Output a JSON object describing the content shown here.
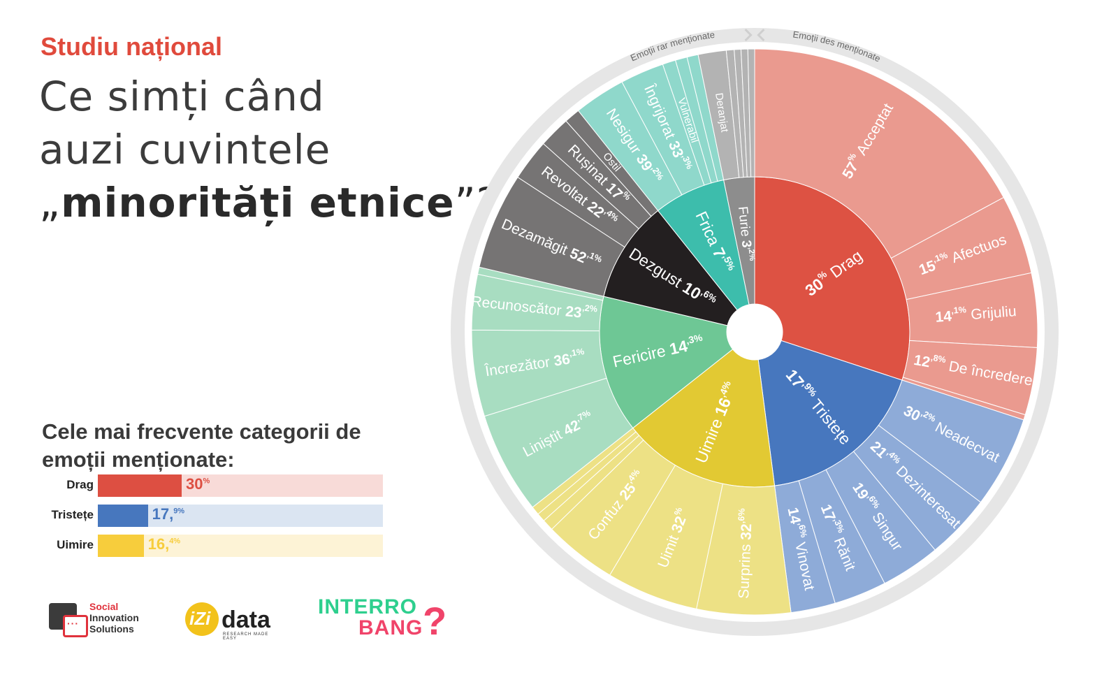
{
  "heading": {
    "kicker": "Studiu național",
    "line1": "Ce simți când",
    "line2": "auzi cuvintele",
    "line3_prefix": "„",
    "line3_bold": "minorități etnice",
    "line3_suffix": "”?"
  },
  "top_categories": {
    "title": "Cele mai frecvente categorii de emoții menționate:",
    "items": [
      {
        "label": "Drag",
        "value": 30,
        "display": "30",
        "sup": "%",
        "color": "#dd4f42",
        "bg": "#f8dbd8"
      },
      {
        "label": "Tristețe",
        "value": 17.9,
        "display": "17,",
        "sup": "9%",
        "color": "#4777be",
        "bg": "#dbe5f2"
      },
      {
        "label": "Uimire",
        "value": 16.4,
        "display": "16,",
        "sup": "4%",
        "color": "#f7cd3c",
        "bg": "#fdf3d6"
      }
    ]
  },
  "logos": {
    "sis": {
      "line1": "Social",
      "line2": "Innovation",
      "line3": "Solutions"
    },
    "izi": {
      "mark": "iZi",
      "word": "data",
      "tagline": "RESEARCH MADE EASY"
    },
    "interrobang": {
      "line1": "INTERRO",
      "line2": "BANG",
      "mark": "?"
    }
  },
  "chart_data": {
    "type": "sunburst",
    "arc_left_label": "Emoții rar menționate",
    "arc_right_label": "Emoții des menționate",
    "categories": [
      {
        "name": "Drag",
        "value": 30.0,
        "label_num": "30",
        "label_sup": "%",
        "color": "#dd5243",
        "outer_color": "#ea9a8f",
        "children": [
          {
            "name": "Acceptat",
            "num": "57",
            "sup": "%",
            "value": 57
          },
          {
            "name": "Afectuos",
            "num": "15",
            "sup": ",1%",
            "value": 15.1
          },
          {
            "name": "Grijuliu",
            "num": "14",
            "sup": ",1%",
            "value": 14.1
          },
          {
            "name": "De încredere",
            "num": "12",
            "sup": ",8%",
            "value": 12.8
          },
          {
            "name": "",
            "num": "",
            "sup": "",
            "value": 1.0
          }
        ]
      },
      {
        "name": "Tristețe",
        "value": 17.9,
        "label_num": "17",
        "label_sup": ",9%",
        "color": "#4777be",
        "outer_color": "#8eabd8",
        "children": [
          {
            "name": "Neadecvat",
            "num": "30",
            "sup": ",2%",
            "value": 30.2
          },
          {
            "name": "Dezinteresat",
            "num": "21",
            "sup": ",4%",
            "value": 21.4
          },
          {
            "name": "Singur",
            "num": "19",
            "sup": ",6%",
            "value": 19.6
          },
          {
            "name": "Rănit",
            "num": "17",
            "sup": ",3%",
            "value": 17.3
          },
          {
            "name": "Vinovat",
            "num": "14",
            "sup": ",6%",
            "value": 14.6
          }
        ]
      },
      {
        "name": "Uimire",
        "value": 16.4,
        "label_num": "16",
        "label_sup": ",4%",
        "color": "#e2c933",
        "outer_color": "#ede185",
        "children": [
          {
            "name": "Surprins",
            "num": "32",
            "sup": ",6%",
            "value": 32.6
          },
          {
            "name": "Uimit",
            "num": "32",
            "sup": "%",
            "value": 32
          },
          {
            "name": "Confuz",
            "num": "25",
            "sup": ",4%",
            "value": 25.4
          },
          {
            "name": "",
            "num": "",
            "sup": "",
            "value": 4
          },
          {
            "name": "",
            "num": "",
            "sup": "",
            "value": 3
          },
          {
            "name": "",
            "num": "",
            "sup": "",
            "value": 3
          }
        ]
      },
      {
        "name": "Fericire",
        "value": 14.3,
        "label_num": "14",
        "label_sup": ",3%",
        "color": "#6ec795",
        "outer_color": "#a8ddc1",
        "children": [
          {
            "name": "Liniștit",
            "num": "42",
            "sup": ",7%",
            "value": 42.7
          },
          {
            "name": "Încrezător",
            "num": "36",
            "sup": ",1%",
            "value": 36.1
          },
          {
            "name": "Recunoscător",
            "num": "23",
            "sup": ",2%",
            "value": 23.2
          },
          {
            "name": "",
            "num": "",
            "sup": "",
            "value": 3
          }
        ]
      },
      {
        "name": "Dezgust",
        "value": 10.6,
        "label_num": "10",
        "label_sup": ",6%",
        "color": "#231f20",
        "outer_color": "#767474",
        "children": [
          {
            "name": "Dezamăgit",
            "num": "52",
            "sup": ",1%",
            "value": 52.1
          },
          {
            "name": "Revoltat",
            "num": "22",
            "sup": ",4%",
            "value": 22.4
          },
          {
            "name": "Rușinat",
            "num": "17",
            "sup": "%",
            "value": 17
          },
          {
            "name": "Ostil",
            "num": "",
            "sup": "",
            "value": 8.5
          }
        ]
      },
      {
        "name": "Frica",
        "value": 7.5,
        "label_num": "7",
        "label_sup": ",5%",
        "color": "#3dbdac",
        "outer_color": "#8fd8cb",
        "children": [
          {
            "name": "Nesigur",
            "num": "39",
            "sup": ",2%",
            "value": 39.2
          },
          {
            "name": "Îngrijorat",
            "num": "33",
            "sup": ",3%",
            "value": 33.3
          },
          {
            "name": "Vulnerabil",
            "num": "",
            "sup": "",
            "value": 10
          },
          {
            "name": "",
            "num": "",
            "sup": "",
            "value": 9
          },
          {
            "name": "",
            "num": "",
            "sup": "",
            "value": 8.5
          }
        ]
      },
      {
        "name": "Furie",
        "value": 3.2,
        "label_num": "3",
        "label_sup": ",2%",
        "color": "#8d8d8d",
        "outer_color": "#b3b3b3",
        "children": [
          {
            "name": "Deranjat",
            "num": "",
            "sup": "",
            "value": 50
          },
          {
            "name": "",
            "num": "",
            "sup": "",
            "value": 14
          },
          {
            "name": "",
            "num": "",
            "sup": "",
            "value": 12
          },
          {
            "name": "",
            "num": "",
            "sup": "",
            "value": 12
          },
          {
            "name": "",
            "num": "",
            "sup": "",
            "value": 12
          }
        ]
      }
    ]
  }
}
